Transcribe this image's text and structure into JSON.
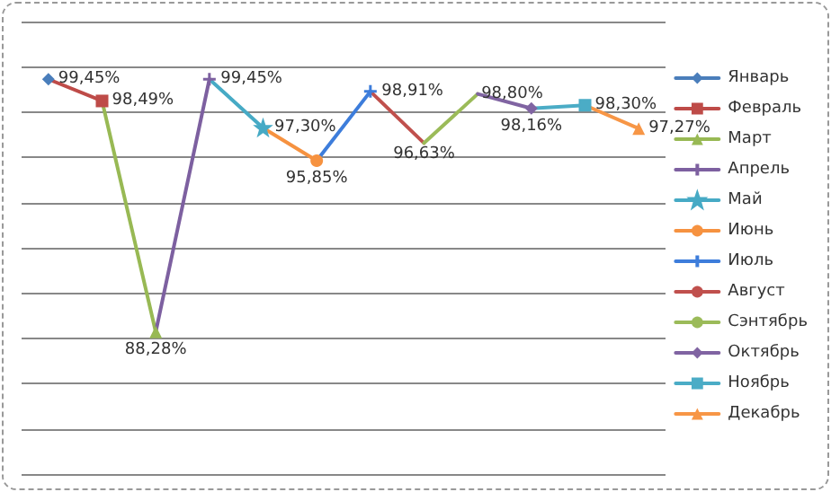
{
  "chart_data": {
    "type": "line",
    "categories": [
      null,
      null,
      null,
      null,
      null,
      null,
      null,
      null,
      null,
      null,
      null,
      null
    ],
    "ylim": [
      82,
      102
    ],
    "yticks": [
      {
        "value": 82,
        "label": null
      },
      {
        "value": 84,
        "label": null
      },
      {
        "value": 86,
        "label": null
      },
      {
        "value": 88,
        "label": null
      },
      {
        "value": 90,
        "label": null
      },
      {
        "value": 92,
        "label": null
      },
      {
        "value": 94,
        "label": null
      },
      {
        "value": 96,
        "label": null
      },
      {
        "value": 98,
        "label": null
      },
      {
        "value": 100,
        "label": null
      },
      {
        "value": 102,
        "label": null
      }
    ],
    "tick_labels": false,
    "grid": "y",
    "legend": "right",
    "series": [
      {
        "name": "Январь",
        "color": "#4a7ebb",
        "marker": "diamond",
        "values": [
          99.45,
          null,
          null,
          null,
          null,
          null,
          null,
          null,
          null,
          null,
          null,
          null
        ],
        "value_labels": [
          "99,45%",
          null,
          null,
          null,
          null,
          null,
          null,
          null,
          null,
          null,
          null,
          null
        ]
      },
      {
        "name": "Февраль",
        "color": "#be4b48",
        "marker": "square",
        "values": [
          99.45,
          98.49,
          null,
          null,
          null,
          null,
          null,
          null,
          null,
          null,
          null,
          null
        ],
        "value_labels": [
          null,
          "98,49%",
          null,
          null,
          null,
          null,
          null,
          null,
          null,
          null,
          null,
          null
        ]
      },
      {
        "name": "Март",
        "color": "#98b954",
        "marker": "triangle",
        "values": [
          null,
          98.49,
          88.28,
          null,
          null,
          null,
          null,
          null,
          null,
          null,
          null,
          null
        ],
        "value_labels": [
          null,
          null,
          "88,28%",
          null,
          null,
          null,
          null,
          null,
          null,
          null,
          null,
          null
        ]
      },
      {
        "name": "Апрель",
        "color": "#7d60a0",
        "marker": "cross",
        "values": [
          null,
          null,
          88.28,
          99.45,
          null,
          null,
          null,
          null,
          null,
          null,
          null,
          null
        ],
        "value_labels": [
          null,
          null,
          null,
          "99,45%",
          null,
          null,
          null,
          null,
          null,
          null,
          null,
          null
        ]
      },
      {
        "name": "Май",
        "color": "#46aac5",
        "marker": "star",
        "values": [
          null,
          null,
          null,
          99.45,
          97.3,
          null,
          null,
          null,
          null,
          null,
          null,
          null
        ],
        "value_labels": [
          null,
          null,
          null,
          null,
          "97,30%",
          null,
          null,
          null,
          null,
          null,
          null,
          null
        ]
      },
      {
        "name": "Июнь",
        "color": "#f69240",
        "marker": "circle",
        "values": [
          null,
          null,
          null,
          null,
          97.3,
          95.85,
          null,
          null,
          null,
          null,
          null,
          null
        ],
        "value_labels": [
          null,
          null,
          null,
          null,
          null,
          "95,85%",
          null,
          null,
          null,
          null,
          null,
          null
        ]
      },
      {
        "name": "Июль",
        "color": "#3d7ddb",
        "marker": "cross",
        "values": [
          null,
          null,
          null,
          null,
          null,
          95.85,
          98.91,
          null,
          null,
          null,
          null,
          null
        ],
        "value_labels": [
          null,
          null,
          null,
          null,
          null,
          null,
          "98,91%",
          null,
          null,
          null,
          null,
          null
        ]
      },
      {
        "name": "Август",
        "color": "#c0504d",
        "marker": "none",
        "values": [
          null,
          null,
          null,
          null,
          null,
          null,
          98.91,
          96.63,
          null,
          null,
          null,
          null
        ],
        "value_labels": [
          null,
          null,
          null,
          null,
          null,
          null,
          null,
          "96,63%",
          null,
          null,
          null,
          null
        ]
      },
      {
        "name": "Сэнтябрь",
        "color": "#9bbb59",
        "marker": "none",
        "values": [
          null,
          null,
          null,
          null,
          null,
          null,
          null,
          96.63,
          98.8,
          null,
          null,
          null
        ],
        "value_labels": [
          null,
          null,
          null,
          null,
          null,
          null,
          null,
          null,
          "98,80%",
          null,
          null,
          null
        ]
      },
      {
        "name": "Октябрь",
        "color": "#8064a2",
        "marker": "diamond",
        "values": [
          null,
          null,
          null,
          null,
          null,
          null,
          null,
          null,
          98.8,
          98.16,
          null,
          null
        ],
        "value_labels": [
          null,
          null,
          null,
          null,
          null,
          null,
          null,
          null,
          null,
          "98,16%",
          null,
          null
        ]
      },
      {
        "name": "Ноябрь",
        "color": "#4bacc6",
        "marker": "square",
        "values": [
          null,
          null,
          null,
          null,
          null,
          null,
          null,
          null,
          null,
          98.16,
          98.3,
          null
        ],
        "value_labels": [
          null,
          null,
          null,
          null,
          null,
          null,
          null,
          null,
          null,
          null,
          "98,30%",
          null
        ]
      },
      {
        "name": "Декабрь",
        "color": "#f79646",
        "marker": "triangle",
        "values": [
          null,
          null,
          null,
          null,
          null,
          null,
          null,
          null,
          null,
          null,
          98.3,
          97.27
        ],
        "value_labels": [
          null,
          null,
          null,
          null,
          null,
          null,
          null,
          null,
          null,
          null,
          null,
          "97,27%"
        ]
      }
    ]
  }
}
